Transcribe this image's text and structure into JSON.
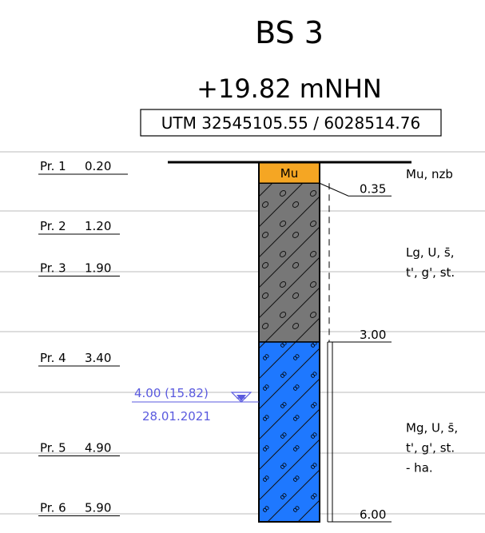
{
  "title": "BS 3",
  "elevation": "+19.82 mNHN",
  "coordinates": "UTM 32545105.55 / 6028514.76",
  "samples": [
    {
      "label": "Pr. 1",
      "depth": "0.20"
    },
    {
      "label": "Pr. 2",
      "depth": "1.20"
    },
    {
      "label": "Pr. 3",
      "depth": "1.90"
    },
    {
      "label": "Pr. 4",
      "depth": "3.40"
    },
    {
      "label": "Pr. 5",
      "depth": "4.90"
    },
    {
      "label": "Pr. 6",
      "depth": "5.90"
    }
  ],
  "layers": [
    {
      "code": "Mu",
      "bottom": "0.35",
      "description": [
        "Mu, nzb"
      ]
    },
    {
      "bottom": "3.00",
      "description": [
        "Lg, U, s̄,",
        "t', g', st."
      ]
    },
    {
      "bottom": "6.00",
      "description": [
        "Mg, U, s̄,",
        "t', g', st.",
        "- ha."
      ]
    }
  ],
  "water_level": {
    "label": "4.00 (15.82)",
    "date": "28.01.2021"
  }
}
